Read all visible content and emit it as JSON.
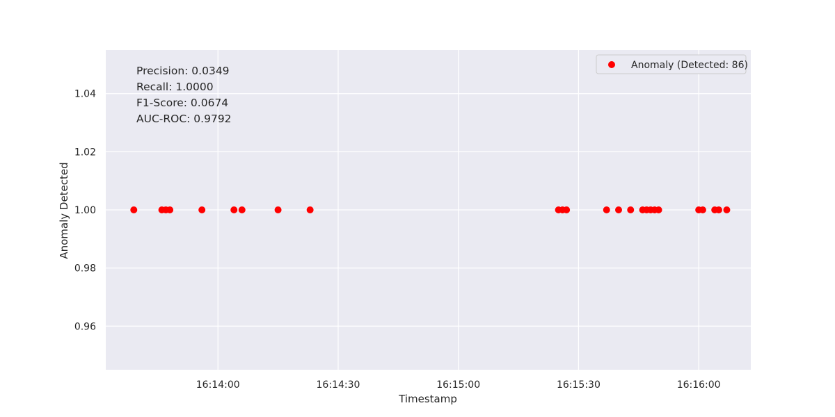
{
  "chart_data": {
    "type": "scatter",
    "xlabel": "Timestamp",
    "ylabel": "Anomaly Detected",
    "xlim": [
      "16:13:32",
      "16:16:13"
    ],
    "ylim": [
      0.945,
      1.055
    ],
    "x_ticks": [
      "16:14:00",
      "16:14:30",
      "16:15:00",
      "16:15:30",
      "16:16:00"
    ],
    "y_ticks": [
      "0.96",
      "0.98",
      "1.00",
      "1.02",
      "1.04"
    ],
    "grid": true,
    "legend_position": "top-right",
    "series": [
      {
        "name": "Anomaly (Detected: 86)",
        "color": "#ff0000",
        "x": [
          "16:13:39",
          "16:13:46",
          "16:13:47",
          "16:13:48",
          "16:13:56",
          "16:14:04",
          "16:14:06",
          "16:14:15",
          "16:14:23",
          "16:15:25",
          "16:15:26",
          "16:15:27",
          "16:15:37",
          "16:15:40",
          "16:15:43",
          "16:15:46",
          "16:15:47",
          "16:15:48",
          "16:15:49",
          "16:15:50",
          "16:16:00",
          "16:16:01",
          "16:16:04",
          "16:16:05",
          "16:16:07"
        ],
        "y": [
          1.0,
          1.0,
          1.0,
          1.0,
          1.0,
          1.0,
          1.0,
          1.0,
          1.0,
          1.0,
          1.0,
          1.0,
          1.0,
          1.0,
          1.0,
          1.0,
          1.0,
          1.0,
          1.0,
          1.0,
          1.0,
          1.0,
          1.0,
          1.0,
          1.0
        ]
      }
    ],
    "annotations": [
      "Precision: 0.0349",
      "Recall: 1.0000",
      "F1-Score: 0.0674",
      "AUC-ROC: 0.9792"
    ]
  }
}
